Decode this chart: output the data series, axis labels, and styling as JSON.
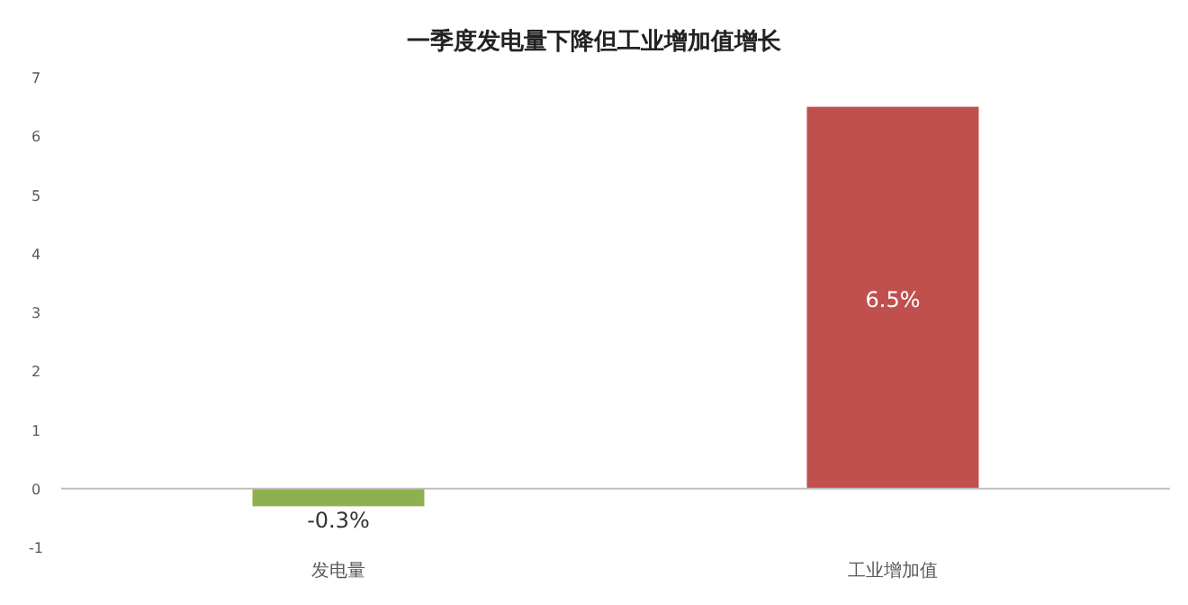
{
  "chart_data": {
    "type": "bar",
    "title": "一季度发电量下降但工业增加值增长",
    "categories": [
      "发电量",
      "工业增加值"
    ],
    "values": [
      -0.3,
      6.5
    ],
    "colors": [
      "#8fb04f",
      "#c0504d"
    ],
    "value_labels": [
      "-0.3%",
      "6.5%"
    ],
    "ylim": [
      -1,
      7
    ],
    "yticks": [
      -1,
      0,
      1,
      2,
      3,
      4,
      5,
      6,
      7
    ]
  }
}
